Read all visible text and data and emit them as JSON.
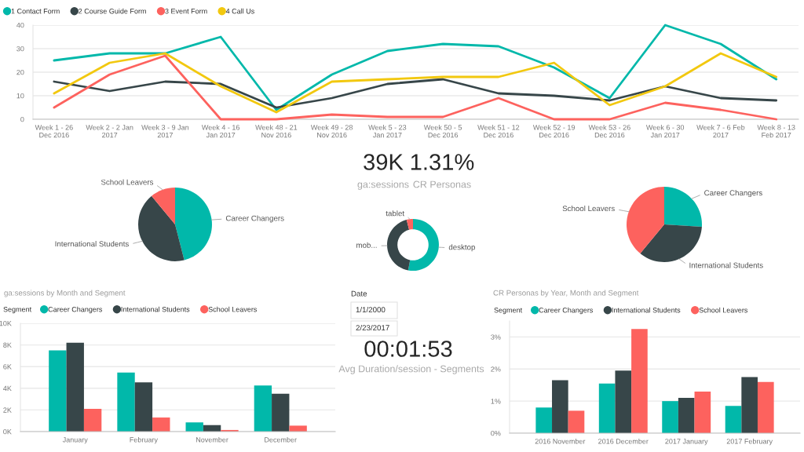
{
  "chart_data": [
    {
      "type": "line",
      "categories": [
        "Week 1 - 26\nDec 2016",
        "Week 2 - 2 Jan\n2017",
        "Week 3 - 9 Jan\n2017",
        "Week 4 - 16\nJan 2017",
        "Week 48 - 21\nNov 2016",
        "Week 49 - 28\nNov 2016",
        "Week 5 - 23\nJan 2017",
        "Week 50 - 5\nDec 2016",
        "Week 51 - 12\nDec 2016",
        "Week 52 - 19\nDec 2016",
        "Week 53 - 26\nDec 2016",
        "Week 6 - 30\nJan 2017",
        "Week 7 - 6 Feb\n2017",
        "Week 8 - 13\nFeb 2017"
      ],
      "series": [
        {
          "name": "1 Contact Form",
          "color": "#01b8aa",
          "values": [
            25,
            28,
            28,
            35,
            4,
            19,
            29,
            32,
            31,
            22,
            9,
            40,
            32,
            17
          ]
        },
        {
          "name": "2 Course Guide Form",
          "color": "#374649",
          "values": [
            16,
            12,
            16,
            15,
            5,
            9,
            15,
            17,
            11,
            10,
            8,
            14,
            9,
            8
          ]
        },
        {
          "name": "3 Event Form",
          "color": "#fd625e",
          "values": [
            5,
            19,
            27,
            0,
            0,
            2,
            1,
            1,
            9,
            0,
            0,
            7,
            4,
            0
          ]
        },
        {
          "name": "4 Call Us",
          "color": "#f2c80f",
          "values": [
            11,
            24,
            28,
            14,
            3,
            16,
            17,
            18,
            18,
            24,
            6,
            14,
            28,
            18
          ]
        }
      ],
      "ylim": [
        0,
        40
      ],
      "yticks": [
        0,
        10,
        20,
        30,
        40
      ],
      "grid": "y",
      "legend": "top left",
      "line_style": "solid"
    },
    {
      "type": "pie",
      "categories": [
        "Career Changers",
        "International Students",
        "School Leavers"
      ],
      "values": [
        46,
        43,
        11
      ],
      "colors": [
        "#01b8aa",
        "#374649",
        "#fd625e"
      ]
    },
    {
      "type": "other",
      "annotations": [
        "39K",
        "ga:sessions"
      ]
    },
    {
      "type": "other",
      "annotations": [
        "1.31%",
        "CR Personas"
      ]
    },
    {
      "type": "donut",
      "categories": [
        "desktop",
        "mob...",
        "tablet"
      ],
      "values": [
        53,
        43,
        4
      ],
      "colors": [
        "#01b8aa",
        "#374649",
        "#fd625e"
      ]
    },
    {
      "type": "pie",
      "categories": [
        "Career Changers",
        "International Students",
        "School Leavers"
      ],
      "values": [
        26,
        35,
        39
      ],
      "colors": [
        "#01b8aa",
        "#374649",
        "#fd625e"
      ]
    },
    {
      "type": "bar",
      "title": "ga:sessions by Month and Segment",
      "legend_title": "Segment",
      "categories": [
        "January",
        "February",
        "November",
        "December"
      ],
      "series": [
        {
          "name": "Career Changers",
          "color": "#01b8aa",
          "values": [
            7500,
            5450,
            850,
            4250
          ]
        },
        {
          "name": "International Students",
          "color": "#374649",
          "values": [
            8200,
            4550,
            600,
            3500
          ]
        },
        {
          "name": "School Leavers",
          "color": "#fd625e",
          "values": [
            2100,
            1300,
            150,
            550
          ]
        }
      ],
      "ylim": [
        0,
        10000
      ],
      "yticks": [
        {
          "value": 0,
          "label": "0K"
        },
        {
          "value": 2000,
          "label": "2K"
        },
        {
          "value": 4000,
          "label": "4K"
        },
        {
          "value": 6000,
          "label": "6K"
        },
        {
          "value": 8000,
          "label": "8K"
        },
        {
          "value": 10000,
          "label": "10K"
        }
      ],
      "grid": "y",
      "legend": "top left"
    },
    {
      "type": "other",
      "title": "Date",
      "annotations": [
        "1/1/2000",
        "2/23/2017"
      ]
    },
    {
      "type": "other",
      "annotations": [
        "00:01:53",
        "Avg Duration/session - Segments"
      ]
    },
    {
      "type": "bar",
      "title": "CR Personas by Year, Month and Segment",
      "legend_title": "Segment",
      "categories": [
        "2016 November",
        "2016 December",
        "2017 January",
        "2017 February"
      ],
      "series": [
        {
          "name": "Career Changers",
          "color": "#01b8aa",
          "values": [
            0.8,
            1.55,
            1.0,
            0.85
          ]
        },
        {
          "name": "International Students",
          "color": "#374649",
          "values": [
            1.65,
            1.95,
            1.1,
            1.75
          ]
        },
        {
          "name": "School Leavers",
          "color": "#fd625e",
          "values": [
            0.7,
            3.25,
            1.3,
            1.6
          ]
        }
      ],
      "ylim": [
        0,
        3.5
      ],
      "yticks": [
        {
          "value": 0,
          "label": "0%"
        },
        {
          "value": 1,
          "label": "1%"
        },
        {
          "value": 2,
          "label": "2%"
        },
        {
          "value": 3,
          "label": "3%"
        }
      ],
      "grid": "y",
      "legend": "top left"
    }
  ]
}
